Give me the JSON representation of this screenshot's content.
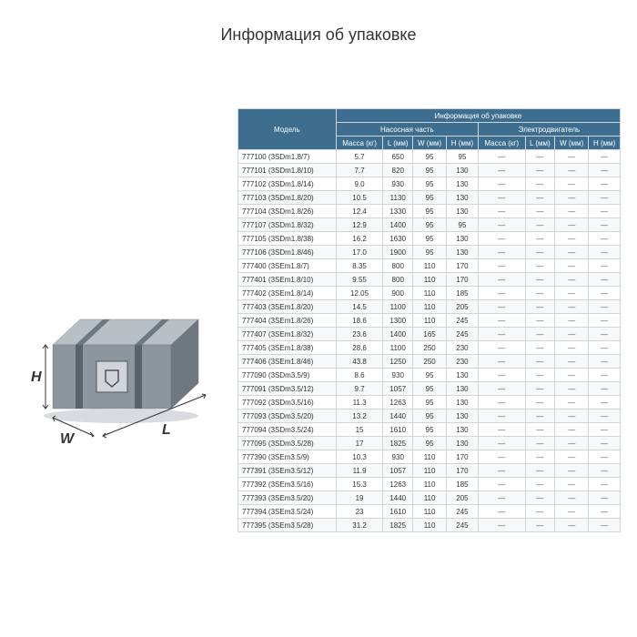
{
  "title": "Информация об упаковке",
  "table": {
    "header": {
      "model": "Модель",
      "group_top": "Информация об упаковке",
      "group_pump": "Насосная часть",
      "group_motor": "Электродвигатель",
      "cols": {
        "mass": "Масса (кг)",
        "l": "L (мм)",
        "w": "W (мм)",
        "h": "H (мм)",
        "m_mass": "Масса (кг)",
        "m_l": "L (мм)",
        "m_w": "W (мм)",
        "m_h": "H (мм)"
      }
    },
    "rows": [
      {
        "model": "777100 (3SDm1.8/7)",
        "mass": "5.7",
        "l": "650",
        "w": "95",
        "h": "95"
      },
      {
        "model": "777101 (3SDm1.8/10)",
        "mass": "7.7",
        "l": "820",
        "w": "95",
        "h": "130"
      },
      {
        "model": "777102 (3SDm1.8/14)",
        "mass": "9.0",
        "l": "930",
        "w": "95",
        "h": "130"
      },
      {
        "model": "777103 (3SDm1.8/20)",
        "mass": "10.5",
        "l": "1130",
        "w": "95",
        "h": "130"
      },
      {
        "model": "777104 (3SDm1.8/26)",
        "mass": "12.4",
        "l": "1330",
        "w": "95",
        "h": "130"
      },
      {
        "model": "777107 (3SDm1.8/32)",
        "mass": "12.9",
        "l": "1400",
        "w": "95",
        "h": "95"
      },
      {
        "model": "777105 (3SDm1.8/38)",
        "mass": "16.2",
        "l": "1630",
        "w": "95",
        "h": "130"
      },
      {
        "model": "777106 (3SDm1.8/46)",
        "mass": "17.0",
        "l": "1900",
        "w": "95",
        "h": "130"
      },
      {
        "model": "777400 (3SEm1.8/7)",
        "mass": "8.35",
        "l": "800",
        "w": "110",
        "h": "170"
      },
      {
        "model": "777401 (3SEm1.8/10)",
        "mass": "9.55",
        "l": "800",
        "w": "110",
        "h": "170"
      },
      {
        "model": "777402 (3SEm1.8/14)",
        "mass": "12.05",
        "l": "900",
        "w": "110",
        "h": "185"
      },
      {
        "model": "777403 (3SEm1.8/20)",
        "mass": "14.5",
        "l": "1100",
        "w": "110",
        "h": "205"
      },
      {
        "model": "777404 (3SEm1.8/26)",
        "mass": "18.6",
        "l": "1300",
        "w": "110",
        "h": "245"
      },
      {
        "model": "777407 (3SEm1.8/32)",
        "mass": "23.6",
        "l": "1400",
        "w": "165",
        "h": "245"
      },
      {
        "model": "777405 (3SEm1.8/38)",
        "mass": "28.6",
        "l": "1100",
        "w": "250",
        "h": "230"
      },
      {
        "model": "777406 (3SEm1.8/46)",
        "mass": "43.8",
        "l": "1250",
        "w": "250",
        "h": "230"
      },
      {
        "model": "777090 (3SDm3.5/9)",
        "mass": "8.6",
        "l": "930",
        "w": "95",
        "h": "130"
      },
      {
        "model": "777091 (3SDm3.5/12)",
        "mass": "9.7",
        "l": "1057",
        "w": "95",
        "h": "130"
      },
      {
        "model": "777092 (3SDm3.5/16)",
        "mass": "11.3",
        "l": "1263",
        "w": "95",
        "h": "130"
      },
      {
        "model": "777093 (3SDm3.5/20)",
        "mass": "13.2",
        "l": "1440",
        "w": "95",
        "h": "130"
      },
      {
        "model": "777094 (3SDm3.5/24)",
        "mass": "15",
        "l": "1610",
        "w": "95",
        "h": "130"
      },
      {
        "model": "777095 (3SDm3.5/28)",
        "mass": "17",
        "l": "1825",
        "w": "95",
        "h": "130"
      },
      {
        "model": "777390 (3SEm3.5/9)",
        "mass": "10.3",
        "l": "930",
        "w": "110",
        "h": "170"
      },
      {
        "model": "777391 (3SEm3.5/12)",
        "mass": "11.9",
        "l": "1057",
        "w": "110",
        "h": "170"
      },
      {
        "model": "777392 (3SEm3.5/16)",
        "mass": "15.3",
        "l": "1263",
        "w": "110",
        "h": "185"
      },
      {
        "model": "777393 (3SEm3.5/20)",
        "mass": "19",
        "l": "1440",
        "w": "110",
        "h": "205"
      },
      {
        "model": "777394 (3SEm3.5/24)",
        "mass": "23",
        "l": "1610",
        "w": "110",
        "h": "245"
      },
      {
        "model": "777395 (3SEm3.5/28)",
        "mass": "31.2",
        "l": "1825",
        "w": "110",
        "h": "245"
      }
    ]
  },
  "box_labels": {
    "h": "H",
    "w": "W",
    "l": "L"
  },
  "colors": {
    "th_bg": "#3d6e8f",
    "border": "#cfd5da",
    "alt_row": "#f6f8f9"
  }
}
